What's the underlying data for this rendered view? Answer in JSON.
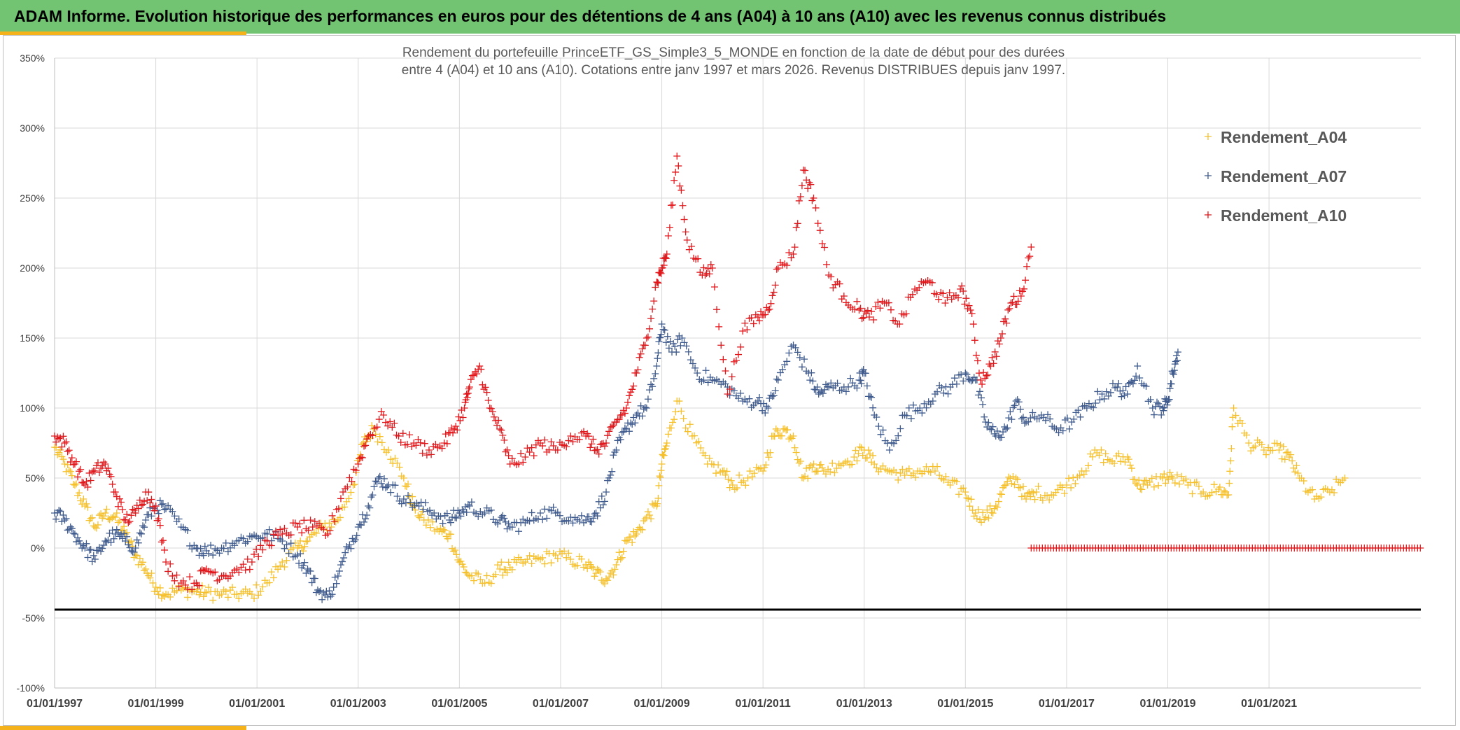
{
  "header": {
    "title": "ADAM Informe. Evolution historique des performances en euros pour des détentions de 4 ans (A04) à 10 ans (A10) avec les revenus connus distribués",
    "background": "#72c472",
    "accent": "#f6b21a"
  },
  "chart_data": {
    "type": "scatter",
    "marker": "plus",
    "title": [
      "Rendement du portefeuille PrinceETF_GS_Simple3_5_MONDE en fonction de la date de début pour des durées",
      "entre 4 (A04) et 10 ans (A10). Cotations entre janv 1997 et mars 2026. Revenus DISTRIBUES depuis janv 1997."
    ],
    "xlabel": "",
    "ylabel": "",
    "x_range": [
      1997.0,
      2024.0
    ],
    "ylim": [
      -100,
      350
    ],
    "y_ticks": [
      -100,
      -50,
      0,
      50,
      100,
      150,
      200,
      250,
      300,
      350
    ],
    "y_tick_labels": [
      "-100%",
      "-50%",
      "0%",
      "50%",
      "100%",
      "150%",
      "200%",
      "250%",
      "300%",
      "350%"
    ],
    "x_ticks": [
      1997,
      1999,
      2001,
      2003,
      2005,
      2007,
      2009,
      2011,
      2013,
      2015,
      2017,
      2019,
      2021
    ],
    "x_tick_labels": [
      "01/01/1997",
      "01/01/1999",
      "01/01/2001",
      "01/01/2003",
      "01/01/2005",
      "01/01/2007",
      "01/01/2009",
      "01/01/2011",
      "01/01/2013",
      "01/01/2015",
      "01/01/2017",
      "01/01/2019",
      "01/01/2021"
    ],
    "grid": true,
    "legend_position": "top-right",
    "reference_line": {
      "y": -44,
      "color": "#000000"
    },
    "series": [
      {
        "name": "Rendement_A04",
        "color": "#f5c02c",
        "x": [
          1997.0,
          1997.2,
          1997.4,
          1997.6,
          1997.8,
          1998.0,
          1998.2,
          1998.4,
          1998.6,
          1998.8,
          1999.0,
          1999.2,
          1999.5,
          1999.8,
          2000.0,
          2000.3,
          2000.6,
          2000.9,
          2001.2,
          2001.5,
          2001.8,
          2002.0,
          2002.3,
          2002.6,
          2002.9,
          2003.1,
          2003.3,
          2003.6,
          2003.9,
          2004.1,
          2004.3,
          2004.6,
          2004.8,
          2005.0,
          2005.2,
          2005.5,
          2005.8,
          2006.0,
          2006.3,
          2006.6,
          2006.9,
          2007.2,
          2007.5,
          2007.7,
          2007.9,
          2008.1,
          2008.3,
          2008.5,
          2008.7,
          2008.9,
          2009.0,
          2009.1,
          2009.3,
          2009.6,
          2009.9,
          2010.2,
          2010.4,
          2010.7,
          2011.0,
          2011.2,
          2011.4,
          2011.6,
          2011.8,
          2012.0,
          2012.2,
          2012.5,
          2012.8,
          2013.0,
          2013.2,
          2013.5,
          2013.8,
          2014.1,
          2014.4,
          2014.7,
          2015.0,
          2015.2,
          2015.4,
          2015.6,
          2015.8,
          2016.0,
          2016.2,
          2016.4,
          2016.7,
          2017.0,
          2017.3,
          2017.6,
          2017.9,
          2018.2,
          2018.4,
          2018.6,
          2018.9,
          2019.1,
          2019.4,
          2019.7,
          2020.0,
          2020.2,
          2020.3,
          2020.6,
          2020.9,
          2021.2,
          2021.4,
          2021.6,
          2021.9,
          2022.2,
          2022.5
        ],
        "values": [
          72,
          60,
          45,
          30,
          15,
          25,
          22,
          10,
          -5,
          -15,
          -28,
          -33,
          -30,
          -31,
          -32,
          -33,
          -33,
          -33,
          -25,
          -10,
          0,
          5,
          15,
          20,
          45,
          75,
          85,
          70,
          50,
          30,
          20,
          12,
          10,
          -10,
          -20,
          -25,
          -15,
          -14,
          -10,
          -8,
          -5,
          -8,
          -12,
          -18,
          -22,
          -12,
          5,
          10,
          22,
          30,
          60,
          75,
          105,
          80,
          60,
          55,
          45,
          50,
          55,
          80,
          85,
          80,
          50,
          60,
          55,
          60,
          65,
          70,
          60,
          55,
          52,
          55,
          55,
          45,
          40,
          25,
          22,
          30,
          45,
          50,
          35,
          40,
          38,
          45,
          55,
          68,
          62,
          65,
          45,
          45,
          50,
          50,
          45,
          40,
          42,
          38,
          100,
          75,
          70,
          70,
          65,
          50,
          35,
          40,
          50
        ]
      },
      {
        "name": "Rendement_A07",
        "color": "#3f5a8c",
        "x": [
          1997.0,
          1997.2,
          1997.4,
          1997.6,
          1997.8,
          1998.0,
          1998.2,
          1998.4,
          1998.6,
          1998.8,
          1999.0,
          1999.2,
          1999.5,
          1999.8,
          2000.0,
          2000.3,
          2000.6,
          2000.9,
          2001.2,
          2001.5,
          2001.8,
          2002.0,
          2002.2,
          2002.4,
          2002.6,
          2002.8,
          2003.0,
          2003.2,
          2003.4,
          2003.6,
          2003.9,
          2004.2,
          2004.5,
          2004.8,
          2005.0,
          2005.2,
          2005.5,
          2005.8,
          2006.0,
          2006.3,
          2006.6,
          2006.9,
          2007.2,
          2007.5,
          2007.7,
          2007.9,
          2008.1,
          2008.3,
          2008.5,
          2008.7,
          2008.9,
          2009.0,
          2009.2,
          2009.4,
          2009.7,
          2010.0,
          2010.3,
          2010.6,
          2010.9,
          2011.1,
          2011.3,
          2011.6,
          2011.9,
          2012.1,
          2012.3,
          2012.6,
          2012.9,
          2013.0,
          2013.2,
          2013.5,
          2013.8,
          2014.1,
          2014.4,
          2014.7,
          2015.0,
          2015.2,
          2015.4,
          2015.6,
          2015.8,
          2016.0,
          2016.2,
          2016.5,
          2016.8,
          2017.1,
          2017.4,
          2017.7,
          2018.0,
          2018.2,
          2018.4,
          2018.7,
          2018.9,
          2019.0,
          2019.1,
          2019.2
        ],
        "values": [
          25,
          20,
          10,
          0,
          -8,
          5,
          10,
          5,
          0,
          20,
          30,
          28,
          15,
          0,
          -2,
          0,
          5,
          8,
          10,
          5,
          -5,
          -15,
          -30,
          -35,
          -20,
          0,
          15,
          30,
          50,
          45,
          35,
          30,
          25,
          20,
          25,
          30,
          25,
          20,
          15,
          18,
          25,
          25,
          22,
          20,
          25,
          40,
          70,
          85,
          95,
          100,
          130,
          160,
          140,
          150,
          125,
          120,
          115,
          105,
          105,
          100,
          120,
          145,
          125,
          110,
          115,
          115,
          120,
          125,
          95,
          70,
          95,
          100,
          110,
          115,
          125,
          120,
          90,
          80,
          85,
          105,
          90,
          95,
          85,
          90,
          100,
          110,
          115,
          110,
          130,
          100,
          100,
          105,
          125,
          140
        ]
      },
      {
        "name": "Rendement_A10",
        "color": "#e0171b",
        "x": [
          1997.0,
          1997.2,
          1997.4,
          1997.6,
          1997.8,
          1998.0,
          1998.2,
          1998.4,
          1998.6,
          1998.8,
          1999.0,
          1999.2,
          1999.5,
          1999.8,
          2000.0,
          2000.3,
          2000.6,
          2000.9,
          2001.2,
          2001.5,
          2001.8,
          2002.1,
          2002.4,
          2002.7,
          2003.0,
          2003.2,
          2003.5,
          2003.8,
          2004.1,
          2004.4,
          2004.7,
          2004.9,
          2005.1,
          2005.2,
          2005.4,
          2005.6,
          2005.8,
          2006.0,
          2006.3,
          2006.6,
          2006.9,
          2007.2,
          2007.5,
          2007.7,
          2007.9,
          2008.1,
          2008.3,
          2008.5,
          2008.7,
          2008.9,
          2009.0,
          2009.1,
          2009.3,
          2009.5,
          2009.8,
          2010.0,
          2010.3,
          2010.6,
          2010.9,
          2011.1,
          2011.3,
          2011.6,
          2011.8,
          2012.0,
          2012.3,
          2012.6,
          2012.9,
          2013.1,
          2013.4,
          2013.7,
          2014.0,
          2014.3,
          2014.6,
          2014.9,
          2015.1,
          2015.3,
          2015.5,
          2015.7,
          2015.9,
          2016.1,
          2016.3
        ],
        "values": [
          80,
          75,
          60,
          45,
          55,
          60,
          40,
          20,
          25,
          40,
          30,
          -10,
          -25,
          -25,
          -15,
          -20,
          -15,
          -10,
          5,
          10,
          15,
          15,
          10,
          40,
          60,
          80,
          95,
          80,
          75,
          70,
          75,
          85,
          100,
          115,
          130,
          100,
          85,
          60,
          65,
          75,
          70,
          80,
          80,
          70,
          75,
          90,
          100,
          125,
          150,
          190,
          200,
          210,
          280,
          220,
          195,
          200,
          110,
          155,
          165,
          170,
          200,
          210,
          270,
          250,
          195,
          180,
          170,
          165,
          175,
          160,
          185,
          190,
          175,
          185,
          170,
          120,
          130,
          150,
          175,
          180,
          215
        ]
      },
      {
        "name": "Rendement_A10",
        "legend": false,
        "color": "#e0171b",
        "x_range": [
          2016.3,
          2024.0
        ],
        "value": 0
      }
    ]
  }
}
